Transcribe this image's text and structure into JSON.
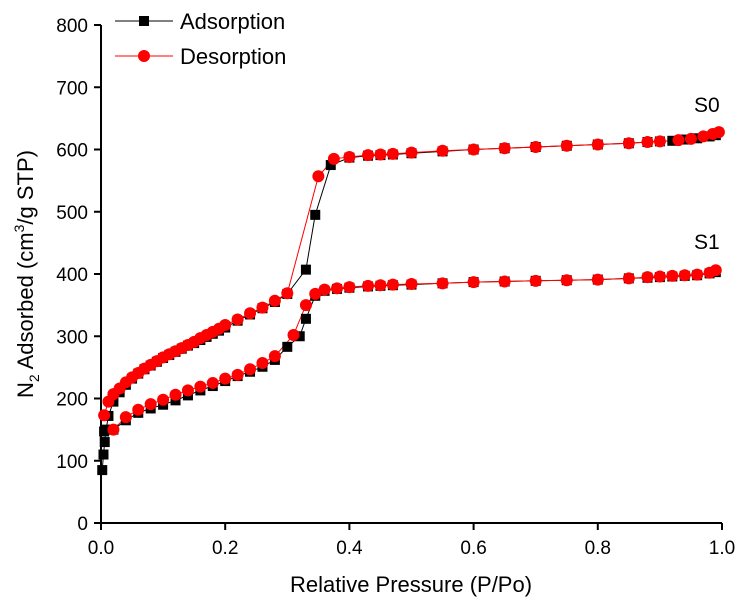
{
  "chart_data": {
    "type": "scatter",
    "title": "",
    "xlabel": "Relative Pressure (P/Po)",
    "ylabel_main": "N",
    "ylabel_sub": "2",
    "ylabel_mid": " Adsorbed (cm",
    "ylabel_sup": "3",
    "ylabel_end": "/g STP)",
    "xlim": [
      0.0,
      1.0
    ],
    "ylim": [
      0,
      800
    ],
    "x_ticks": [
      "0.0",
      "0.2",
      "0.4",
      "0.6",
      "0.8",
      "1.0"
    ],
    "y_ticks": [
      "0",
      "100",
      "200",
      "300",
      "400",
      "500",
      "600",
      "700",
      "800"
    ],
    "legend": [
      {
        "name": "Adsorption",
        "color": "#000000",
        "marker": "square"
      },
      {
        "name": "Desorption",
        "color": "#ff0000",
        "marker": "circle"
      }
    ],
    "annotations": [
      {
        "text": "S0",
        "x": 0.95,
        "y": 660
      },
      {
        "text": "S1",
        "x": 0.95,
        "y": 445
      }
    ],
    "series": [
      {
        "name": "S0 Adsorption",
        "color": "#000000",
        "marker": "square",
        "points": [
          [
            0.002,
            85
          ],
          [
            0.004,
            110
          ],
          [
            0.006,
            130
          ],
          [
            0.008,
            150
          ],
          [
            0.012,
            172
          ],
          [
            0.02,
            195
          ],
          [
            0.03,
            210
          ],
          [
            0.04,
            222
          ],
          [
            0.05,
            232
          ],
          [
            0.06,
            240
          ],
          [
            0.07,
            247
          ],
          [
            0.08,
            253
          ],
          [
            0.09,
            259
          ],
          [
            0.1,
            265
          ],
          [
            0.11,
            270
          ],
          [
            0.12,
            275
          ],
          [
            0.13,
            280
          ],
          [
            0.14,
            285
          ],
          [
            0.15,
            289
          ],
          [
            0.16,
            294
          ],
          [
            0.17,
            299
          ],
          [
            0.18,
            304
          ],
          [
            0.19,
            309
          ],
          [
            0.2,
            314
          ],
          [
            0.22,
            325
          ],
          [
            0.24,
            335
          ],
          [
            0.26,
            345
          ],
          [
            0.28,
            355
          ],
          [
            0.3,
            368
          ],
          [
            0.33,
            407
          ],
          [
            0.345,
            495
          ],
          [
            0.37,
            575
          ],
          [
            0.4,
            587
          ],
          [
            0.43,
            590
          ],
          [
            0.45,
            591
          ],
          [
            0.47,
            592
          ],
          [
            0.5,
            594
          ],
          [
            0.55,
            597
          ],
          [
            0.6,
            600
          ],
          [
            0.65,
            602
          ],
          [
            0.7,
            604
          ],
          [
            0.75,
            606
          ],
          [
            0.8,
            608
          ],
          [
            0.85,
            610
          ],
          [
            0.88,
            612
          ],
          [
            0.9,
            613
          ],
          [
            0.92,
            614
          ],
          [
            0.94,
            616
          ],
          [
            0.96,
            618
          ],
          [
            0.98,
            621
          ],
          [
            0.99,
            623
          ]
        ]
      },
      {
        "name": "S0 Desorption",
        "color": "#ff0000",
        "marker": "circle",
        "points": [
          [
            0.995,
            628
          ],
          [
            0.985,
            625
          ],
          [
            0.97,
            621
          ],
          [
            0.95,
            617
          ],
          [
            0.93,
            615
          ],
          [
            0.9,
            613
          ],
          [
            0.88,
            612
          ],
          [
            0.85,
            610
          ],
          [
            0.8,
            608
          ],
          [
            0.75,
            606
          ],
          [
            0.7,
            604
          ],
          [
            0.65,
            602
          ],
          [
            0.6,
            600
          ],
          [
            0.55,
            598
          ],
          [
            0.5,
            595
          ],
          [
            0.47,
            593
          ],
          [
            0.45,
            592
          ],
          [
            0.43,
            591
          ],
          [
            0.4,
            588
          ],
          [
            0.375,
            585
          ],
          [
            0.35,
            557
          ],
          [
            0.3,
            369
          ],
          [
            0.28,
            357
          ],
          [
            0.26,
            346
          ],
          [
            0.24,
            337
          ],
          [
            0.22,
            327
          ],
          [
            0.2,
            318
          ],
          [
            0.19,
            312
          ],
          [
            0.18,
            307
          ],
          [
            0.17,
            302
          ],
          [
            0.16,
            297
          ],
          [
            0.15,
            291
          ],
          [
            0.14,
            286
          ],
          [
            0.13,
            281
          ],
          [
            0.12,
            276
          ],
          [
            0.11,
            271
          ],
          [
            0.1,
            266
          ],
          [
            0.09,
            260
          ],
          [
            0.08,
            254
          ],
          [
            0.07,
            248
          ],
          [
            0.06,
            241
          ],
          [
            0.05,
            234
          ],
          [
            0.04,
            226
          ],
          [
            0.03,
            216
          ],
          [
            0.02,
            207
          ],
          [
            0.012,
            195
          ],
          [
            0.005,
            173
          ]
        ]
      },
      {
        "name": "S1 Adsorption",
        "color": "#000000",
        "marker": "square",
        "points": [
          [
            0.005,
            147
          ],
          [
            0.02,
            150
          ],
          [
            0.04,
            165
          ],
          [
            0.06,
            177
          ],
          [
            0.08,
            184
          ],
          [
            0.1,
            190
          ],
          [
            0.12,
            197
          ],
          [
            0.14,
            205
          ],
          [
            0.16,
            213
          ],
          [
            0.18,
            220
          ],
          [
            0.2,
            228
          ],
          [
            0.22,
            236
          ],
          [
            0.24,
            243
          ],
          [
            0.26,
            251
          ],
          [
            0.28,
            262
          ],
          [
            0.3,
            283
          ],
          [
            0.32,
            300
          ],
          [
            0.33,
            328
          ],
          [
            0.345,
            365
          ],
          [
            0.36,
            373
          ],
          [
            0.38,
            376
          ],
          [
            0.4,
            378
          ],
          [
            0.43,
            380
          ],
          [
            0.45,
            381
          ],
          [
            0.47,
            382
          ],
          [
            0.5,
            383
          ],
          [
            0.55,
            385
          ],
          [
            0.6,
            387
          ],
          [
            0.65,
            388
          ],
          [
            0.7,
            389
          ],
          [
            0.75,
            390
          ],
          [
            0.8,
            391
          ],
          [
            0.85,
            393
          ],
          [
            0.88,
            394
          ],
          [
            0.9,
            395
          ],
          [
            0.92,
            396
          ],
          [
            0.94,
            397
          ],
          [
            0.96,
            398
          ],
          [
            0.98,
            401
          ],
          [
            0.99,
            403
          ]
        ]
      },
      {
        "name": "S1 Desorption",
        "color": "#ff0000",
        "marker": "circle",
        "points": [
          [
            0.99,
            406
          ],
          [
            0.98,
            402
          ],
          [
            0.96,
            399
          ],
          [
            0.94,
            398
          ],
          [
            0.92,
            397
          ],
          [
            0.9,
            396
          ],
          [
            0.88,
            395
          ],
          [
            0.85,
            393
          ],
          [
            0.8,
            391
          ],
          [
            0.75,
            390
          ],
          [
            0.7,
            389
          ],
          [
            0.65,
            388
          ],
          [
            0.6,
            387
          ],
          [
            0.55,
            385
          ],
          [
            0.5,
            384
          ],
          [
            0.47,
            383
          ],
          [
            0.45,
            382
          ],
          [
            0.43,
            381
          ],
          [
            0.4,
            379
          ],
          [
            0.38,
            377
          ],
          [
            0.36,
            375
          ],
          [
            0.345,
            368
          ],
          [
            0.33,
            350
          ],
          [
            0.31,
            302
          ],
          [
            0.28,
            268
          ],
          [
            0.26,
            257
          ],
          [
            0.24,
            247
          ],
          [
            0.22,
            238
          ],
          [
            0.2,
            232
          ],
          [
            0.18,
            225
          ],
          [
            0.16,
            219
          ],
          [
            0.14,
            213
          ],
          [
            0.12,
            206
          ],
          [
            0.1,
            198
          ],
          [
            0.08,
            191
          ],
          [
            0.06,
            182
          ],
          [
            0.04,
            170
          ],
          [
            0.02,
            150
          ]
        ]
      }
    ]
  }
}
